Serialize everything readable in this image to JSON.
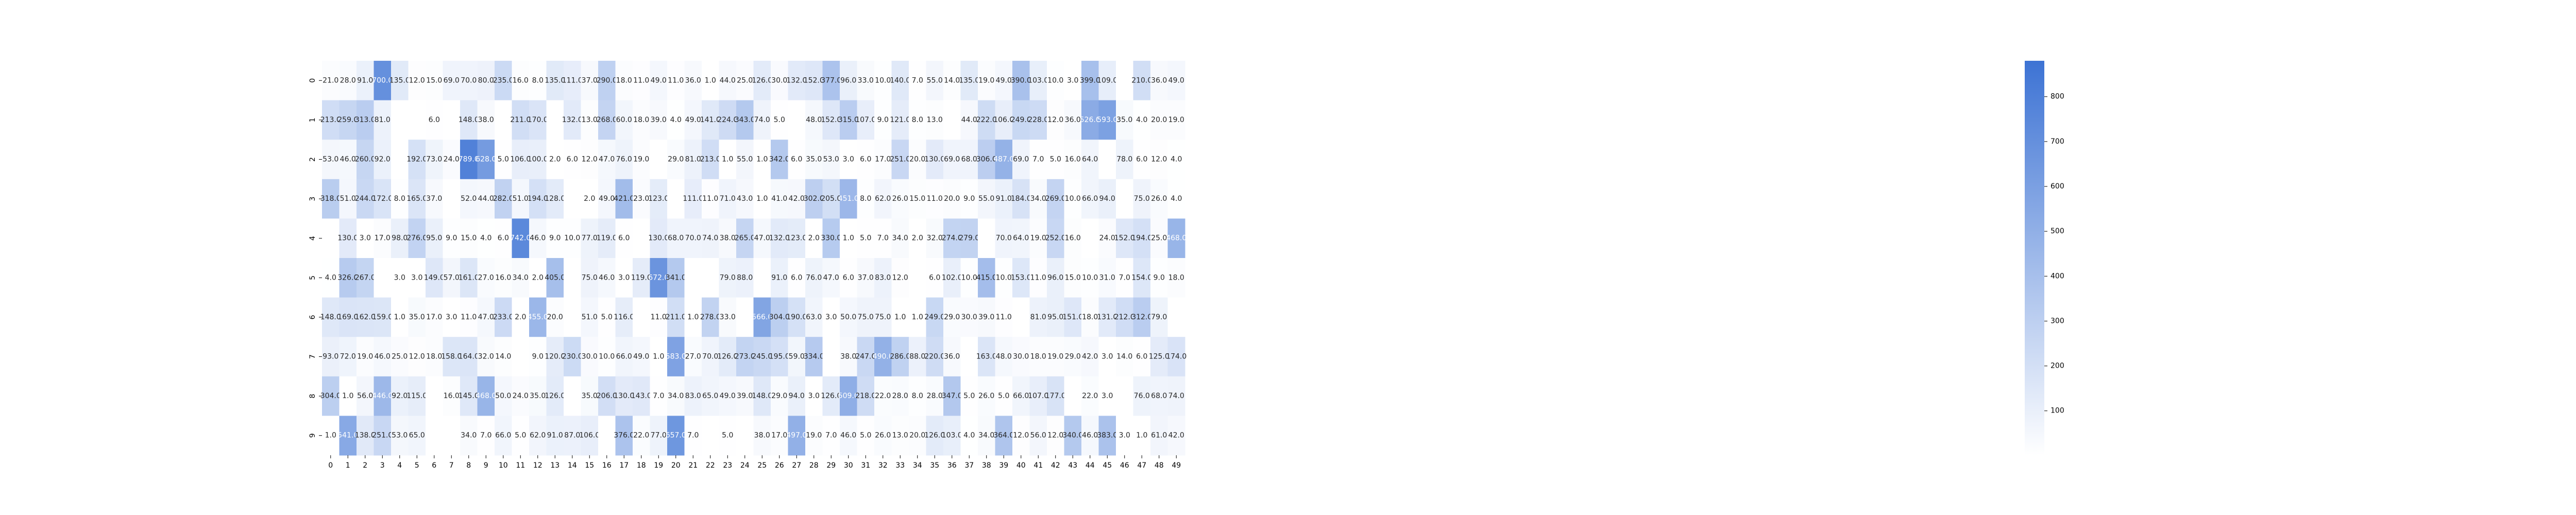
{
  "chart_data": {
    "type": "heatmap",
    "title": "",
    "xlabel": "",
    "ylabel": "",
    "x_categories": [
      "0",
      "1",
      "2",
      "3",
      "4",
      "5",
      "6",
      "7",
      "8",
      "9",
      "10",
      "11",
      "12",
      "13",
      "14",
      "15",
      "16",
      "17",
      "18",
      "19",
      "20",
      "21",
      "22",
      "23",
      "24",
      "25",
      "26",
      "27",
      "28",
      "29",
      "30",
      "31",
      "32",
      "33",
      "34",
      "35",
      "36",
      "37",
      "38",
      "39",
      "40",
      "41",
      "42",
      "43",
      "44",
      "45",
      "46",
      "47",
      "48",
      "49"
    ],
    "y_categories": [
      "0",
      "1",
      "2",
      "3",
      "4",
      "5",
      "6",
      "7",
      "8",
      "9"
    ],
    "values": [
      [
        21.0,
        28.0,
        91.0,
        700.0,
        135.0,
        12.0,
        15.0,
        69.0,
        70.0,
        80.0,
        235.0,
        16.0,
        8.0,
        135.0,
        111.0,
        37.0,
        290.0,
        18.0,
        11.0,
        49.0,
        11.0,
        36.0,
        1.0,
        44.0,
        25.0,
        126.0,
        30.0,
        132.0,
        152.0,
        377.0,
        96.0,
        33.0,
        10.0,
        140.0,
        7.0,
        55.0,
        14.0,
        135.0,
        19.0,
        49.0,
        390.0,
        103.0,
        10.0,
        3.0,
        399.0,
        109.0,
        null,
        210.0,
        36.0,
        49.0
      ],
      [
        213.0,
        259.0,
        313.0,
        81.0,
        null,
        null,
        6.0,
        null,
        148.0,
        38.0,
        null,
        211.0,
        170.0,
        null,
        132.0,
        13.0,
        268.0,
        60.0,
        18.0,
        39.0,
        4.0,
        49.0,
        141.0,
        224.0,
        343.0,
        74.0,
        5.0,
        null,
        48.0,
        152.0,
        315.0,
        107.0,
        9.0,
        121.0,
        8.0,
        13.0,
        null,
        44.0,
        222.0,
        106.0,
        249.0,
        228.0,
        12.0,
        36.0,
        526.0,
        593.0,
        35.0,
        4.0,
        20.0,
        19.0
      ],
      [
        53.0,
        46.0,
        260.0,
        92.0,
        null,
        192.0,
        73.0,
        24.0,
        789.0,
        628.0,
        5.0,
        106.0,
        100.0,
        2.0,
        6.0,
        12.0,
        47.0,
        76.0,
        19.0,
        null,
        29.0,
        81.0,
        213.0,
        1.0,
        55.0,
        1.0,
        342.0,
        6.0,
        35.0,
        53.0,
        3.0,
        6.0,
        17.0,
        251.0,
        20.0,
        130.0,
        69.0,
        68.0,
        306.0,
        487.0,
        69.0,
        7.0,
        5.0,
        16.0,
        64.0,
        null,
        78.0,
        6.0,
        12.0,
        4.0
      ],
      [
        318.0,
        51.0,
        244.0,
        172.0,
        8.0,
        165.0,
        37.0,
        null,
        52.0,
        44.0,
        282.0,
        51.0,
        194.0,
        128.0,
        null,
        2.0,
        49.0,
        421.0,
        23.0,
        123.0,
        null,
        111.0,
        11.0,
        71.0,
        43.0,
        1.0,
        41.0,
        42.0,
        302.0,
        205.0,
        451.0,
        8.0,
        62.0,
        26.0,
        15.0,
        11.0,
        20.0,
        9.0,
        55.0,
        91.0,
        184.0,
        34.0,
        269.0,
        10.0,
        66.0,
        94.0,
        null,
        75.0,
        26.0,
        4.0
      ],
      [
        null,
        130.0,
        3.0,
        17.0,
        98.0,
        276.0,
        95.0,
        9.0,
        15.0,
        4.0,
        6.0,
        742.0,
        46.0,
        9.0,
        10.0,
        77.0,
        119.0,
        6.0,
        null,
        130.0,
        68.0,
        70.0,
        74.0,
        38.0,
        265.0,
        47.0,
        132.0,
        123.0,
        2.0,
        330.0,
        1.0,
        5.0,
        7.0,
        34.0,
        2.0,
        32.0,
        274.0,
        279.0,
        null,
        70.0,
        64.0,
        19.0,
        252.0,
        16.0,
        null,
        24.0,
        152.0,
        194.0,
        25.0,
        468.0
      ],
      [
        4.0,
        326.0,
        267.0,
        null,
        3.0,
        3.0,
        149.0,
        57.0,
        161.0,
        27.0,
        16.0,
        34.0,
        2.0,
        405.0,
        null,
        75.0,
        46.0,
        3.0,
        119.0,
        672.0,
        341.0,
        null,
        null,
        79.0,
        88.0,
        null,
        91.0,
        6.0,
        76.0,
        47.0,
        6.0,
        37.0,
        83.0,
        12.0,
        null,
        6.0,
        102.0,
        10.0,
        415.0,
        10.0,
        153.0,
        11.0,
        96.0,
        15.0,
        10.0,
        31.0,
        7.0,
        154.0,
        9.0,
        18.0
      ],
      [
        148.0,
        169.0,
        162.0,
        159.0,
        1.0,
        35.0,
        17.0,
        3.0,
        11.0,
        47.0,
        233.0,
        2.0,
        455.0,
        20.0,
        null,
        51.0,
        5.0,
        116.0,
        null,
        11.0,
        211.0,
        1.0,
        278.0,
        33.0,
        null,
        566.0,
        304.0,
        190.0,
        63.0,
        3.0,
        50.0,
        75.0,
        75.0,
        1.0,
        1.0,
        249.0,
        29.0,
        30.0,
        39.0,
        11.0,
        null,
        81.0,
        95.0,
        151.0,
        18.0,
        131.0,
        212.0,
        312.0,
        79.0,
        null
      ],
      [
        93.0,
        72.0,
        19.0,
        46.0,
        25.0,
        12.0,
        18.0,
        158.0,
        164.0,
        32.0,
        14.0,
        null,
        9.0,
        120.0,
        230.0,
        30.0,
        10.0,
        66.0,
        49.0,
        1.0,
        583.0,
        27.0,
        70.0,
        126.0,
        273.0,
        245.0,
        195.0,
        59.0,
        334.0,
        null,
        38.0,
        247.0,
        490.0,
        286.0,
        88.0,
        220.0,
        36.0,
        null,
        163.0,
        48.0,
        30.0,
        18.0,
        19.0,
        29.0,
        42.0,
        3.0,
        14.0,
        6.0,
        125.0,
        174.0
      ],
      [
        304.0,
        1.0,
        56.0,
        446.0,
        92.0,
        115.0,
        null,
        16.0,
        145.0,
        468.0,
        50.0,
        24.0,
        35.0,
        126.0,
        null,
        35.0,
        206.0,
        130.0,
        143.0,
        7.0,
        34.0,
        83.0,
        65.0,
        49.0,
        39.0,
        148.0,
        29.0,
        94.0,
        3.0,
        126.0,
        509.0,
        218.0,
        22.0,
        28.0,
        8.0,
        28.0,
        347.0,
        5.0,
        26.0,
        5.0,
        66.0,
        107.0,
        177.0,
        null,
        22.0,
        3.0,
        null,
        76.0,
        68.0,
        74.0
      ],
      [
        1.0,
        541.0,
        138.0,
        251.0,
        53.0,
        65.0,
        null,
        null,
        34.0,
        7.0,
        66.0,
        5.0,
        62.0,
        91.0,
        87.0,
        106.0,
        null,
        376.0,
        22.0,
        77.0,
        657.0,
        7.0,
        null,
        5.0,
        null,
        38.0,
        17.0,
        497.0,
        19.0,
        7.0,
        46.0,
        5.0,
        26.0,
        13.0,
        20.0,
        126.0,
        103.0,
        4.0,
        34.0,
        364.0,
        12.0,
        56.0,
        12.0,
        340.0,
        46.0,
        383.0,
        3.0,
        1.0,
        61.0,
        42.0
      ]
    ],
    "value_format": "one-decimal",
    "colorbar_ticks": [
      100,
      200,
      300,
      400,
      500,
      600,
      700,
      800
    ],
    "vmin": 1.0,
    "vmax": 880.0,
    "colormap": {
      "low": "#ffffff",
      "high": "#3d73d4"
    },
    "annotation_dark": "#262626",
    "annotation_light": "#ffffff",
    "legend": "colorbar-right"
  }
}
